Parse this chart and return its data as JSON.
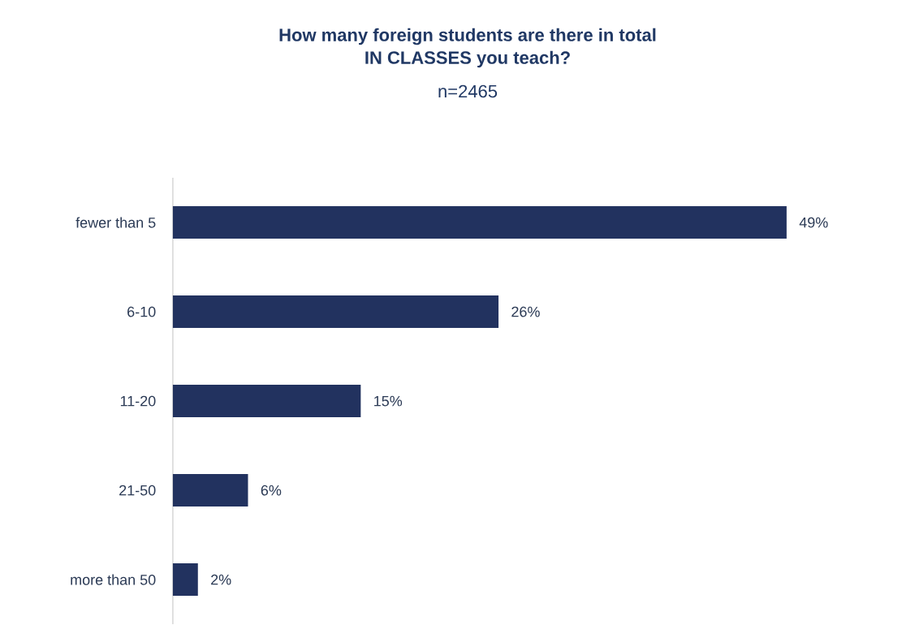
{
  "chart_data": {
    "type": "bar",
    "orientation": "horizontal",
    "title": "How many foreign students are there in total\nIN CLASSES you teach?",
    "subtitle": "n=2465",
    "categories": [
      "fewer than 5",
      "6-10",
      "11-20",
      "21-50",
      "more than 50"
    ],
    "values": [
      49,
      26,
      15,
      6,
      2
    ],
    "value_labels": [
      "49%",
      "26%",
      "15%",
      "6%",
      "2%"
    ],
    "color": "#22325f"
  }
}
